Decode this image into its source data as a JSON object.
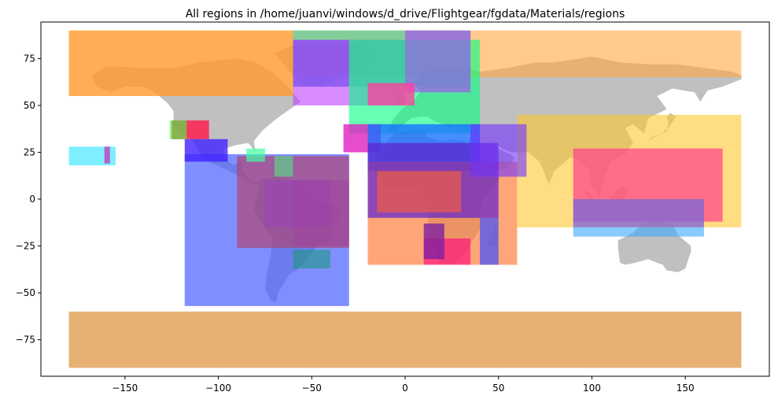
{
  "chart_data": {
    "type": "map",
    "title": "All regions in /home/juanvi/windows/d_drive/Flightgear/fgdata/Materials/regions",
    "xlim": [
      -195,
      195
    ],
    "ylim": [
      -94.5,
      94.5
    ],
    "xticks": [
      -150,
      -100,
      -50,
      0,
      50,
      100,
      150
    ],
    "yticks": [
      -75,
      -50,
      -25,
      0,
      25,
      50,
      75
    ],
    "xtick_labels": [
      "−150",
      "−100",
      "−50",
      "0",
      "50",
      "100",
      "150"
    ],
    "ytick_labels": [
      "−75",
      "−50",
      "−25",
      "0",
      "25",
      "50",
      "75"
    ],
    "grid": false,
    "land_color": "#c0c0c0",
    "regions": [
      {
        "lon": [
          -180,
          -60
        ],
        "lat": [
          55,
          90
        ],
        "color": "#ff9a2a",
        "opacity": 0.8
      },
      {
        "lon": [
          -60,
          180
        ],
        "lat": [
          65,
          90
        ],
        "color": "#ffa640",
        "opacity": 0.6
      },
      {
        "lon": [
          -180,
          180
        ],
        "lat": [
          -90,
          -60
        ],
        "color": "#ffa640",
        "opacity": 0.6
      },
      {
        "lon": [
          60,
          180
        ],
        "lat": [
          -15,
          45
        ],
        "color": "#ffc830",
        "opacity": 0.6
      },
      {
        "lon": [
          90,
          170
        ],
        "lat": [
          -12,
          27
        ],
        "color": "#ff3d8c",
        "opacity": 0.7
      },
      {
        "lon": [
          90,
          160
        ],
        "lat": [
          -20,
          0
        ],
        "color": "#38a8ff",
        "opacity": 0.6
      },
      {
        "lon": [
          90,
          160
        ],
        "lat": [
          -15,
          0
        ],
        "color": "#b040c0",
        "opacity": 0.5
      },
      {
        "lon": [
          -118,
          -30
        ],
        "lat": [
          -57,
          24
        ],
        "color": "#4a60ff",
        "opacity": 0.7
      },
      {
        "lon": [
          -90,
          -30
        ],
        "lat": [
          -26,
          23
        ],
        "color": "#b0406a",
        "opacity": 0.65
      },
      {
        "lon": [
          -75,
          -40
        ],
        "lat": [
          -15,
          10
        ],
        "color": "#9a40c0",
        "opacity": 0.5
      },
      {
        "lon": [
          -60,
          -30
        ],
        "lat": [
          -25,
          10
        ],
        "color": "#a040a0",
        "opacity": 0.5
      },
      {
        "lon": [
          -60,
          35
        ],
        "lat": [
          60,
          90
        ],
        "color": "#30d0a0",
        "opacity": 0.6
      },
      {
        "lon": [
          -60,
          0
        ],
        "lat": [
          50,
          85
        ],
        "color": "#c040ff",
        "opacity": 0.6
      },
      {
        "lon": [
          -60,
          -30
        ],
        "lat": [
          60,
          85
        ],
        "color": "#8040ff",
        "opacity": 0.5
      },
      {
        "lon": [
          -30,
          40
        ],
        "lat": [
          35,
          85
        ],
        "color": "#00ff80",
        "opacity": 0.6
      },
      {
        "lon": [
          0,
          35
        ],
        "lat": [
          57,
          90
        ],
        "color": "#b040ff",
        "opacity": 0.6
      },
      {
        "lon": [
          -20,
          5
        ],
        "lat": [
          50,
          62
        ],
        "color": "#ff40a0",
        "opacity": 0.8
      },
      {
        "lon": [
          -33,
          -13
        ],
        "lat": [
          25,
          40
        ],
        "color": "#e020c0",
        "opacity": 0.8
      },
      {
        "lon": [
          -20,
          40
        ],
        "lat": [
          15,
          40
        ],
        "color": "#1870ff",
        "opacity": 0.8
      },
      {
        "lon": [
          -20,
          60
        ],
        "lat": [
          -35,
          20
        ],
        "color": "#ff8040",
        "opacity": 0.7
      },
      {
        "lon": [
          -20,
          50
        ],
        "lat": [
          -10,
          30
        ],
        "color": "#6020d0",
        "opacity": 0.7
      },
      {
        "lon": [
          -15,
          30
        ],
        "lat": [
          -7,
          15
        ],
        "color": "#ff6030",
        "opacity": 0.6
      },
      {
        "lon": [
          35,
          65
        ],
        "lat": [
          12,
          40
        ],
        "color": "#7030ff",
        "opacity": 0.6
      },
      {
        "lon": [
          10,
          35
        ],
        "lat": [
          -35,
          -21
        ],
        "color": "#ff0080",
        "opacity": 0.6
      },
      {
        "lon": [
          10,
          21
        ],
        "lat": [
          -32,
          -13
        ],
        "color": "#8020a0",
        "opacity": 0.8
      },
      {
        "lon": [
          40,
          50
        ],
        "lat": [
          -35,
          -10
        ],
        "color": "#4050ff",
        "opacity": 0.7
      },
      {
        "lon": [
          -125,
          -105
        ],
        "lat": [
          32,
          42
        ],
        "color": "#ff2050",
        "opacity": 0.85
      },
      {
        "lon": [
          -126,
          -117
        ],
        "lat": [
          32,
          42
        ],
        "color": "#40ff40",
        "opacity": 0.6
      },
      {
        "lon": [
          -118,
          -95
        ],
        "lat": [
          20,
          32
        ],
        "color": "#4020ff",
        "opacity": 0.8
      },
      {
        "lon": [
          -180,
          -155
        ],
        "lat": [
          18,
          28
        ],
        "color": "#00e0ff",
        "opacity": 0.5
      },
      {
        "lon": [
          -161,
          -158
        ],
        "lat": [
          19,
          28
        ],
        "color": "#c040c0",
        "opacity": 0.8
      },
      {
        "lon": [
          -85,
          -75
        ],
        "lat": [
          20,
          27
        ],
        "color": "#40ffa0",
        "opacity": 0.7
      },
      {
        "lon": [
          -70,
          -60
        ],
        "lat": [
          12,
          23
        ],
        "color": "#40ff80",
        "opacity": 0.5
      },
      {
        "lon": [
          -60,
          -40
        ],
        "lat": [
          -37,
          -27
        ],
        "color": "#1a9a80",
        "opacity": 0.6
      }
    ]
  }
}
